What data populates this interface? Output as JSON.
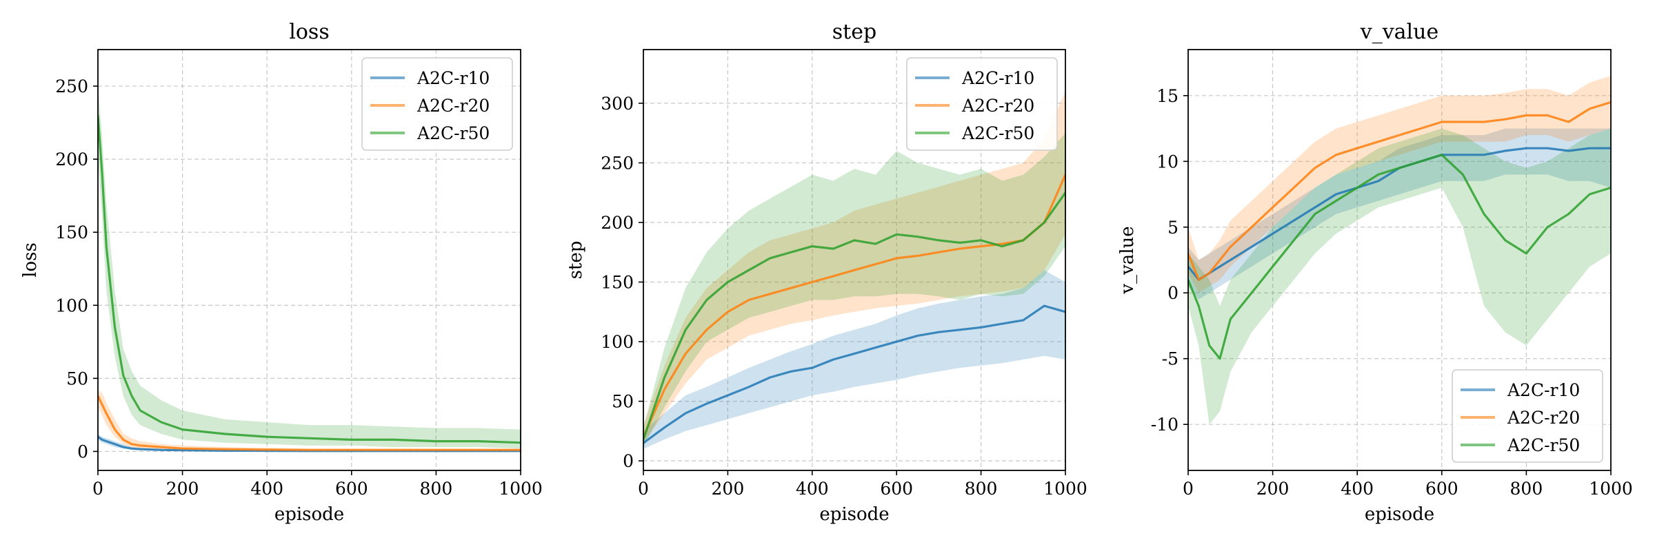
{
  "colors": {
    "A2C-r10": "#1f77b4",
    "A2C-r20": "#ff7f0e",
    "A2C-r50": "#2ca02c"
  },
  "chart_data": [
    {
      "type": "line",
      "title": "loss",
      "xlabel": "episode",
      "ylabel": "loss",
      "xlim": [
        0,
        1000
      ],
      "ylim": [
        -13,
        275
      ],
      "xticks": [
        0,
        200,
        400,
        600,
        800,
        1000
      ],
      "xtick_labels": [
        "0",
        "200",
        "400",
        "600",
        "800",
        "1000"
      ],
      "yticks": [
        0,
        50,
        100,
        150,
        200,
        250
      ],
      "ytick_labels": [
        "0",
        "50",
        "100",
        "150",
        "200",
        "250"
      ],
      "grid": true,
      "legend": "upper-right",
      "x": [
        0,
        10,
        20,
        40,
        60,
        80,
        100,
        150,
        200,
        300,
        400,
        500,
        600,
        700,
        800,
        900,
        1000
      ],
      "series": [
        {
          "name": "A2C-r10",
          "values": [
            10,
            8,
            7,
            5,
            3,
            2,
            1.5,
            1,
            0.8,
            0.5,
            0.4,
            0.3,
            0.3,
            0.3,
            0.3,
            0.3,
            0.3
          ],
          "low": [
            8,
            6,
            5,
            3,
            2,
            1,
            0.8,
            0.5,
            0.4,
            0.2,
            0.2,
            0.1,
            0.1,
            0.1,
            0.1,
            0.1,
            0.1
          ],
          "high": [
            12,
            10,
            9,
            7,
            5,
            3,
            2.5,
            1.8,
            1.5,
            1,
            0.8,
            0.6,
            0.6,
            0.6,
            0.6,
            0.6,
            0.6
          ]
        },
        {
          "name": "A2C-r20",
          "values": [
            38,
            32,
            26,
            15,
            8,
            5,
            4,
            3,
            2,
            1.5,
            1.2,
            1,
            1,
            1,
            1,
            1,
            1
          ],
          "low": [
            30,
            25,
            18,
            10,
            5,
            3,
            2,
            1.5,
            1,
            0.5,
            0.4,
            0.3,
            0.3,
            0.3,
            0.3,
            0.3,
            0.3
          ],
          "high": [
            42,
            40,
            33,
            22,
            12,
            9,
            7,
            5,
            4,
            3,
            2.5,
            2,
            2,
            2,
            2,
            2,
            2
          ]
        },
        {
          "name": "A2C-r50",
          "values": [
            230,
            190,
            140,
            85,
            52,
            38,
            28,
            20,
            15,
            12,
            10,
            9,
            8,
            8,
            7,
            7,
            6
          ],
          "low": [
            200,
            160,
            110,
            65,
            38,
            25,
            18,
            12,
            8,
            6,
            5,
            4,
            4,
            3,
            3,
            3,
            2
          ],
          "high": [
            250,
            215,
            170,
            110,
            70,
            55,
            45,
            35,
            28,
            22,
            20,
            18,
            18,
            17,
            16,
            16,
            15
          ]
        }
      ]
    },
    {
      "type": "line",
      "title": "step",
      "xlabel": "episode",
      "ylabel": "step",
      "xlim": [
        0,
        1000
      ],
      "ylim": [
        -8,
        345
      ],
      "xticks": [
        0,
        200,
        400,
        600,
        800,
        1000
      ],
      "xtick_labels": [
        "0",
        "200",
        "400",
        "600",
        "800",
        "1000"
      ],
      "yticks": [
        0,
        50,
        100,
        150,
        200,
        250,
        300
      ],
      "ytick_labels": [
        "0",
        "50",
        "100",
        "150",
        "200",
        "250",
        "300"
      ],
      "grid": true,
      "legend": "upper-right",
      "x": [
        0,
        50,
        100,
        150,
        200,
        250,
        300,
        350,
        400,
        450,
        500,
        550,
        600,
        650,
        700,
        750,
        800,
        850,
        900,
        950,
        1000
      ],
      "series": [
        {
          "name": "A2C-r10",
          "values": [
            15,
            28,
            40,
            48,
            55,
            62,
            70,
            75,
            78,
            85,
            90,
            95,
            100,
            105,
            108,
            110,
            112,
            115,
            118,
            130,
            125
          ],
          "low": [
            10,
            18,
            25,
            30,
            35,
            40,
            45,
            50,
            55,
            58,
            62,
            65,
            68,
            72,
            75,
            78,
            80,
            82,
            85,
            88,
            85
          ],
          "high": [
            25,
            40,
            55,
            62,
            70,
            78,
            85,
            92,
            98,
            105,
            110,
            115,
            122,
            128,
            132,
            135,
            138,
            140,
            145,
            160,
            150
          ]
        },
        {
          "name": "A2C-r20",
          "values": [
            20,
            60,
            90,
            110,
            125,
            135,
            140,
            145,
            150,
            155,
            160,
            165,
            170,
            172,
            175,
            178,
            180,
            182,
            185,
            200,
            240
          ],
          "low": [
            15,
            40,
            65,
            85,
            95,
            105,
            110,
            115,
            118,
            122,
            125,
            128,
            130,
            132,
            135,
            138,
            140,
            142,
            145,
            160,
            190
          ],
          "high": [
            30,
            80,
            120,
            145,
            160,
            175,
            185,
            190,
            195,
            200,
            210,
            215,
            220,
            225,
            230,
            235,
            240,
            245,
            250,
            270,
            310
          ]
        },
        {
          "name": "A2C-r50",
          "values": [
            18,
            70,
            110,
            135,
            150,
            160,
            170,
            175,
            180,
            178,
            185,
            182,
            190,
            188,
            185,
            183,
            185,
            180,
            185,
            200,
            225
          ],
          "low": [
            12,
            45,
            75,
            100,
            110,
            120,
            125,
            130,
            135,
            135,
            138,
            138,
            140,
            140,
            138,
            135,
            140,
            138,
            140,
            155,
            180
          ],
          "high": [
            28,
            95,
            145,
            175,
            195,
            210,
            220,
            230,
            240,
            235,
            245,
            240,
            260,
            250,
            245,
            240,
            245,
            235,
            240,
            255,
            275
          ]
        }
      ]
    },
    {
      "type": "line",
      "title": "v_value",
      "xlabel": "episode",
      "ylabel": "v_value",
      "xlim": [
        0,
        1000
      ],
      "ylim": [
        -13.5,
        18.5
      ],
      "xticks": [
        0,
        200,
        400,
        600,
        800,
        1000
      ],
      "xtick_labels": [
        "0",
        "200",
        "400",
        "600",
        "800",
        "1000"
      ],
      "yticks": [
        -10,
        -5,
        0,
        5,
        10,
        15
      ],
      "ytick_labels": [
        "-10",
        "-5",
        "0",
        "5",
        "10",
        "15"
      ],
      "grid": true,
      "legend": "lower-right",
      "x": [
        0,
        25,
        50,
        75,
        100,
        150,
        200,
        250,
        300,
        350,
        400,
        450,
        500,
        550,
        600,
        650,
        700,
        750,
        800,
        850,
        900,
        950,
        1000
      ],
      "series": [
        {
          "name": "A2C-r10",
          "values": [
            2,
            1,
            1.5,
            2,
            2.5,
            3.5,
            4.5,
            5.5,
            6.5,
            7.5,
            8,
            8.5,
            9.5,
            10,
            10.5,
            10.5,
            10.5,
            10.8,
            11,
            11,
            10.8,
            11,
            11
          ],
          "low": [
            0.5,
            -0.5,
            0,
            0.5,
            1,
            2,
            3,
            4,
            5,
            6,
            6.5,
            7,
            7.5,
            8,
            8.5,
            8.5,
            8.5,
            9,
            9,
            9,
            8.5,
            8.5,
            8
          ],
          "high": [
            3.5,
            2.5,
            3,
            3.5,
            4,
            5,
            6,
            7,
            8,
            9,
            9.5,
            10,
            11,
            11.5,
            12,
            12,
            12,
            12.5,
            12.5,
            12.5,
            12.5,
            12.5,
            12.5
          ]
        },
        {
          "name": "A2C-r20",
          "values": [
            3,
            1,
            1.5,
            2.5,
            3.5,
            5,
            6.5,
            8,
            9.5,
            10.5,
            11,
            11.5,
            12,
            12.5,
            13,
            13,
            13,
            13.2,
            13.5,
            13.5,
            13,
            14,
            14.5
          ],
          "low": [
            1.5,
            0,
            0.5,
            1,
            2,
            3.5,
            5,
            6.5,
            8,
            9,
            9.5,
            10,
            10.5,
            11,
            11.5,
            11.5,
            11.5,
            11.5,
            12,
            12,
            11.5,
            12,
            12.5
          ],
          "high": [
            5,
            2.5,
            3,
            4,
            5.5,
            7,
            8.5,
            10,
            11.5,
            12.5,
            13,
            13.5,
            14,
            14.5,
            15,
            15,
            15,
            15.2,
            15.5,
            15.5,
            15,
            16,
            16.5
          ]
        },
        {
          "name": "A2C-r50",
          "values": [
            1,
            -1,
            -4,
            -5,
            -2,
            0,
            2,
            4,
            6,
            7,
            8,
            9,
            9.5,
            10,
            10.5,
            9,
            6,
            4,
            3,
            5,
            6,
            7.5,
            8
          ],
          "low": [
            -1,
            -4,
            -10,
            -9,
            -6,
            -3,
            -1,
            1,
            3,
            4.5,
            5.5,
            6.5,
            7,
            7.5,
            8,
            5,
            -1,
            -3,
            -4,
            -2,
            0,
            2,
            3
          ],
          "high": [
            3,
            2,
            1,
            -1,
            1,
            3,
            5,
            6.5,
            8,
            9,
            10,
            11,
            11.5,
            12,
            12.5,
            12,
            11,
            10,
            9.5,
            10,
            11,
            12,
            12.5
          ]
        }
      ]
    }
  ]
}
